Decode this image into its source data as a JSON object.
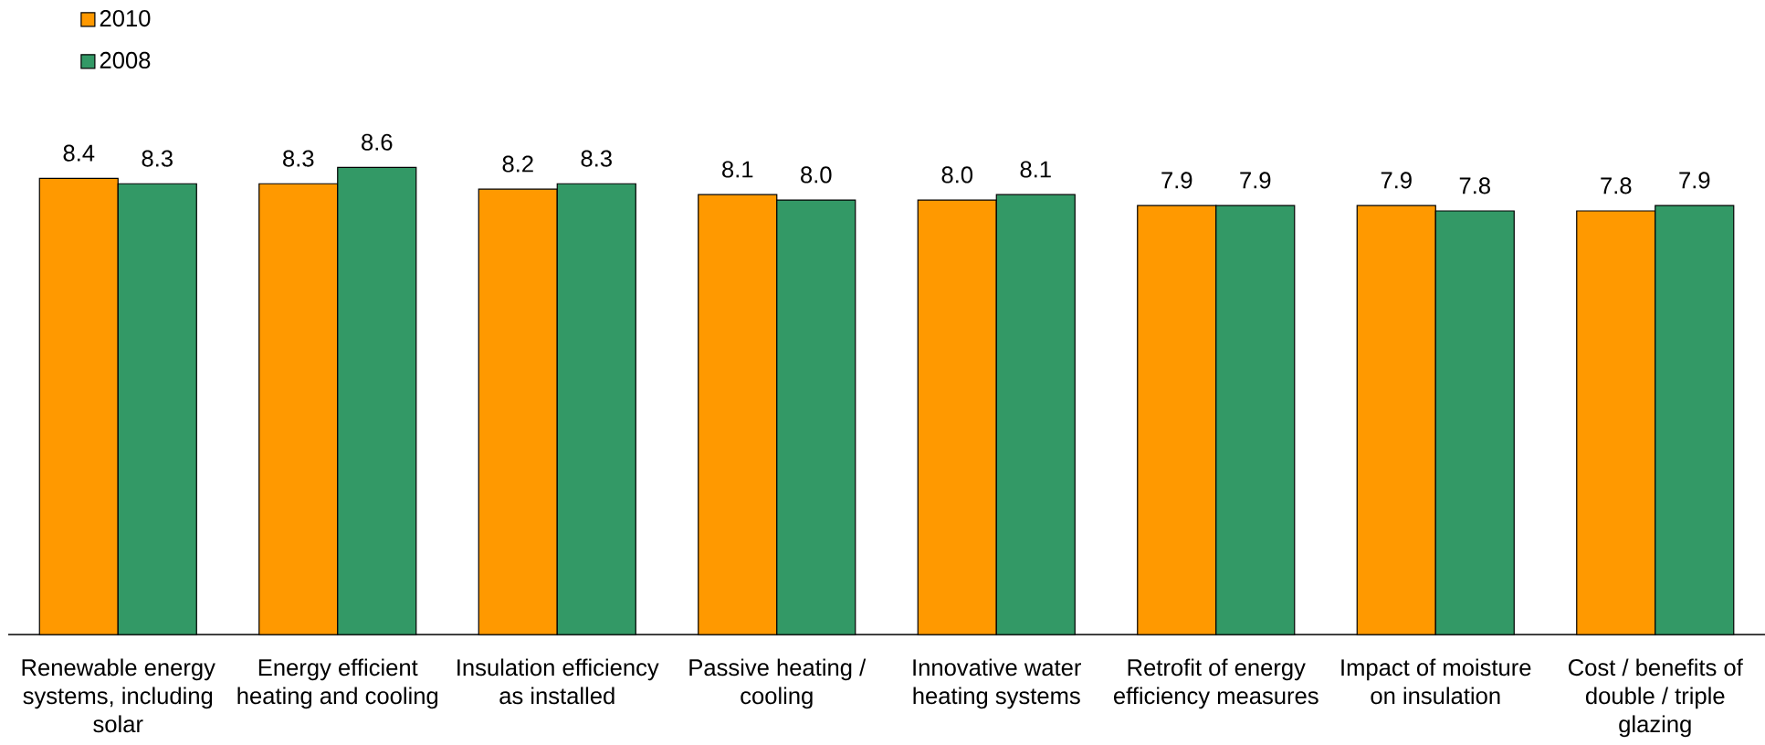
{
  "chart_data": {
    "type": "bar",
    "categories": [
      "Renewable energy systems, including solar",
      "Energy efficient heating and cooling",
      "Insulation efficiency as installed",
      "Passive heating / cooling",
      "Innovative water heating systems",
      "Retrofit of energy efficiency measures",
      "Impact of moisture on insulation",
      "Cost / benefits of double / triple glazing"
    ],
    "series": [
      {
        "name": "2010",
        "color": "#ff9900",
        "values": [
          8.4,
          8.3,
          8.2,
          8.1,
          8.0,
          7.9,
          7.9,
          7.8
        ],
        "value_labels": [
          "8.4",
          "8.3",
          "8.2",
          "8.1",
          "8.0",
          "7.9",
          "7.9",
          "7.8"
        ]
      },
      {
        "name": "2008",
        "color": "#339966",
        "values": [
          8.3,
          8.6,
          8.3,
          8.0,
          8.1,
          7.9,
          7.8,
          7.9
        ],
        "value_labels": [
          "8.3",
          "8.6",
          "8.3",
          "8.0",
          "8.1",
          "7.9",
          "7.8",
          "7.9"
        ]
      }
    ],
    "legend": "top left",
    "tick_labels": "x"
  }
}
